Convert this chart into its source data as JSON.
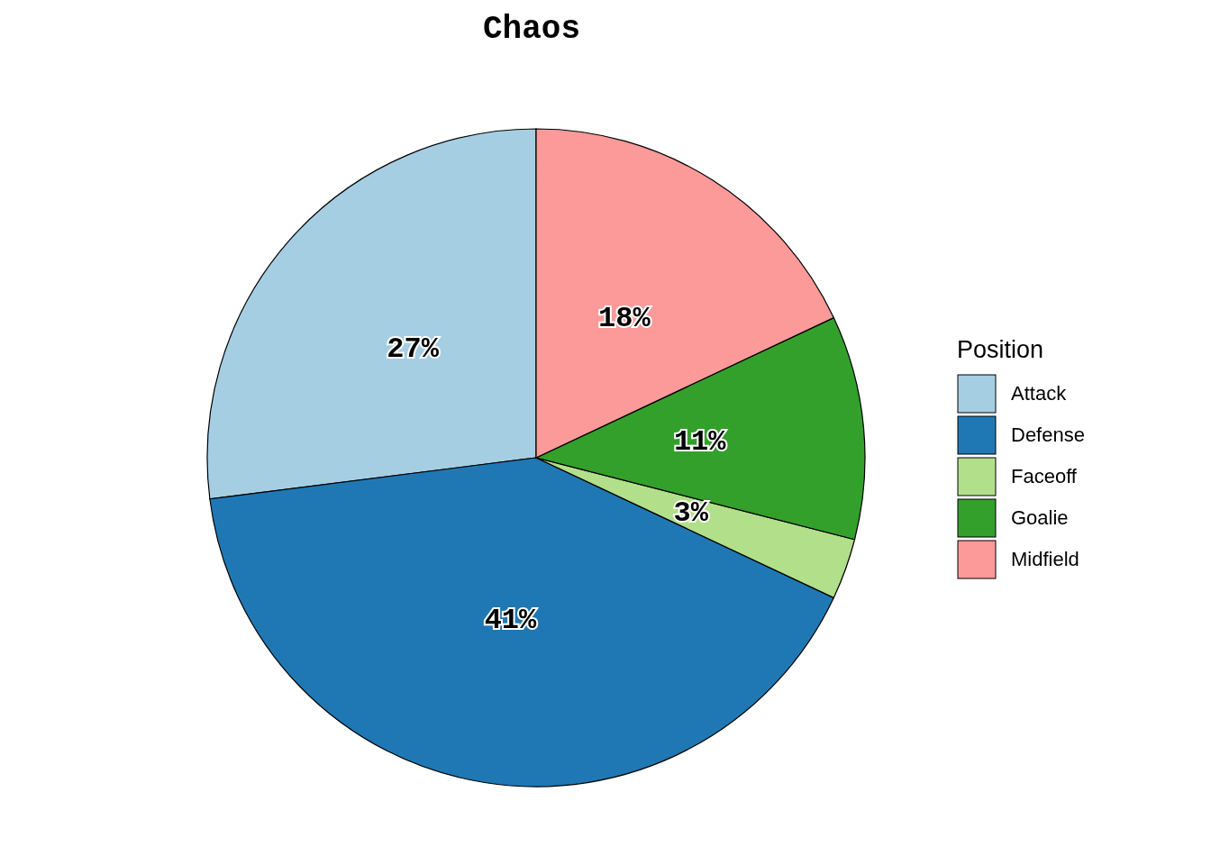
{
  "chart_data": {
    "type": "pie",
    "title": "Chaos",
    "legend_title": "Position",
    "categories": [
      "Attack",
      "Defense",
      "Faceoff",
      "Goalie",
      "Midfield"
    ],
    "values": [
      27,
      41,
      3,
      11,
      18
    ],
    "colors": [
      "#a6cee3",
      "#1f78b4",
      "#b2df8a",
      "#33a02c",
      "#fb9a99"
    ],
    "value_labels": [
      "27%",
      "41%",
      "3%",
      "11%",
      "18%"
    ],
    "legend": "right"
  }
}
